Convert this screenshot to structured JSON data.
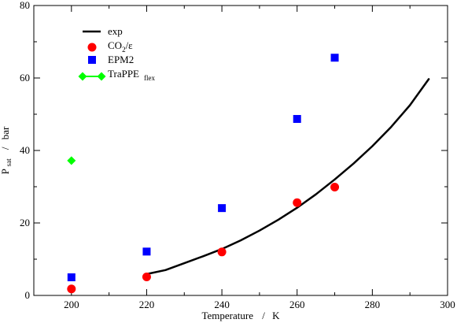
{
  "chart_data": {
    "type": "scatter",
    "xlabel": {
      "main": "Temperature",
      "sep": "/",
      "unit": "K"
    },
    "ylabel": {
      "main": "P",
      "sub": "sat",
      "sep": "/",
      "unit": "bar"
    },
    "xlim": [
      190,
      300
    ],
    "ylim": [
      0,
      80
    ],
    "xticks": [
      200,
      220,
      240,
      260,
      280,
      300
    ],
    "yticks": [
      0,
      20,
      40,
      60,
      80
    ],
    "grid": false,
    "legend_position": "top-left",
    "legend": [
      {
        "main": "exp",
        "sub": "",
        "post": ""
      },
      {
        "main": "CO",
        "sub": "2",
        "post": "/ε"
      },
      {
        "main": "EPM2",
        "sub": "",
        "post": ""
      },
      {
        "main": "TraPPE",
        "sub": "flex",
        "post": ""
      }
    ],
    "series": [
      {
        "name": "exp",
        "style": "line",
        "color": "#000000",
        "x": [
          220,
          225,
          230,
          235,
          240,
          245,
          250,
          255,
          260,
          265,
          270,
          275,
          280,
          285,
          290,
          295
        ],
        "y": [
          5.9,
          7.0,
          8.9,
          10.8,
          12.8,
          15.2,
          17.9,
          20.9,
          24.2,
          27.9,
          32.0,
          36.4,
          41.2,
          46.5,
          52.5,
          59.7
        ]
      },
      {
        "name": "CO2/ε",
        "style": "circle",
        "color": "#ff0000",
        "x": [
          200,
          220,
          240,
          260,
          270
        ],
        "y": [
          1.8,
          5.1,
          12.0,
          25.6,
          29.9
        ]
      },
      {
        "name": "EPM2",
        "style": "square",
        "color": "#0000ff",
        "x": [
          200,
          220,
          240,
          260,
          270
        ],
        "y": [
          5.0,
          12.1,
          24.1,
          48.7,
          65.6
        ]
      },
      {
        "name": "TraPPE flex",
        "style": "diamond",
        "color": "#00ff00",
        "x": [
          200
        ],
        "y": [
          37.2
        ]
      }
    ]
  }
}
